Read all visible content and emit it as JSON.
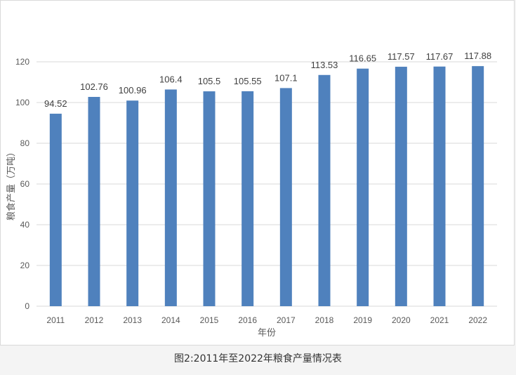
{
  "caption": "图2:2011年至2022年粮食产量情况表",
  "chart_data": {
    "type": "bar",
    "title": "",
    "xlabel": "年份",
    "ylabel": "粮食产量（万吨）",
    "categories": [
      "2011",
      "2012",
      "2013",
      "2014",
      "2015",
      "2016",
      "2017",
      "2018",
      "2019",
      "2020",
      "2021",
      "2022"
    ],
    "values": [
      94.52,
      102.76,
      100.96,
      106.4,
      105.5,
      105.55,
      107.1,
      113.53,
      116.65,
      117.57,
      117.67,
      117.88
    ],
    "data_labels": [
      "94.52",
      "102.76",
      "100.96",
      "106.4",
      "105.5",
      "105.55",
      "107.1",
      "113.53",
      "116.65",
      "117.57",
      "117.67",
      "117.88"
    ],
    "ylim": [
      0,
      120
    ],
    "yticks": [
      "0",
      "20",
      "40",
      "60",
      "80",
      "100",
      "120"
    ],
    "grid": true,
    "legend": "none",
    "bar_color": "#4f81bd",
    "grid_color": "#d9d9d9"
  }
}
